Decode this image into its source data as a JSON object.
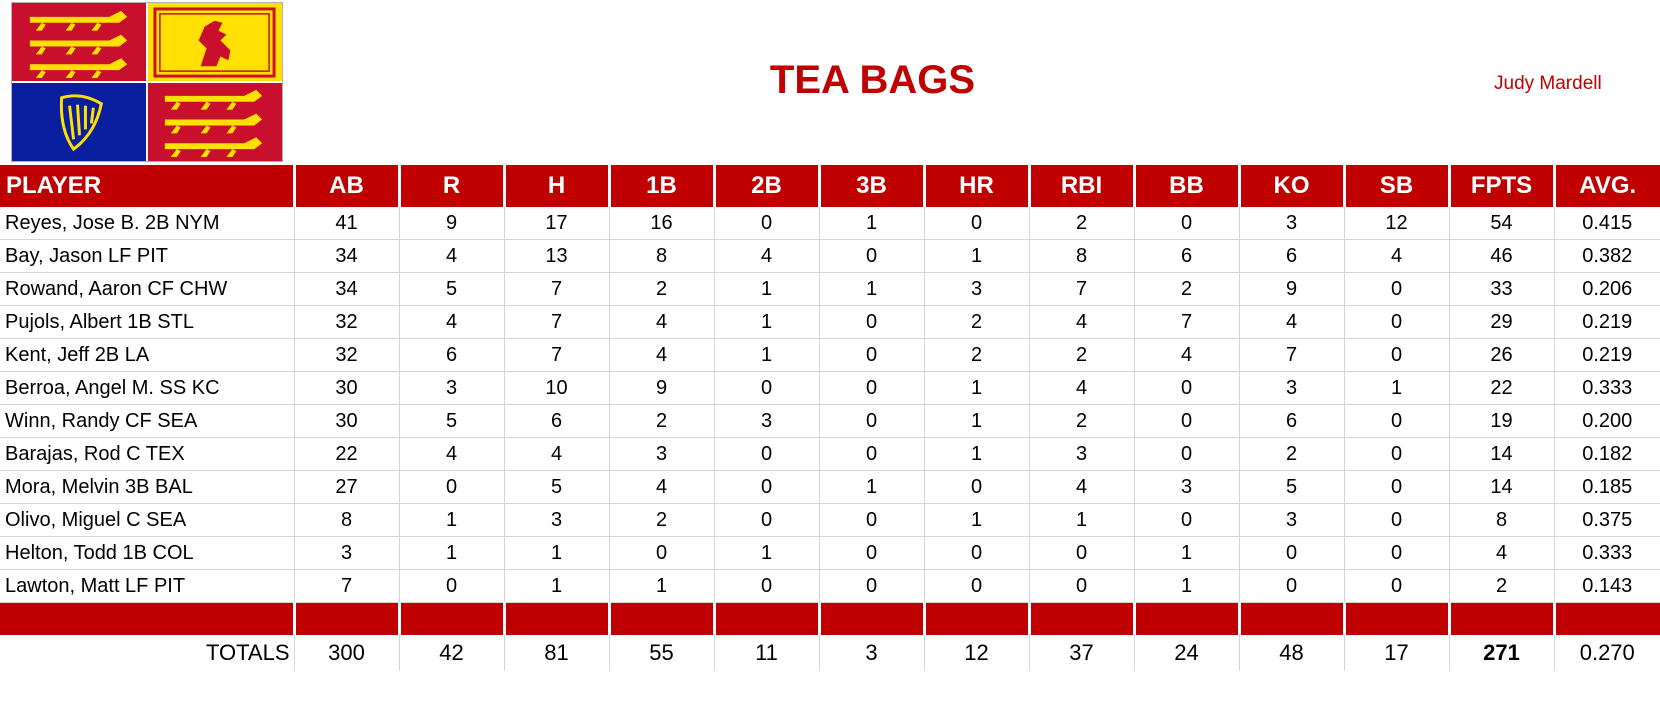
{
  "header": {
    "team_name": "TEA BAGS",
    "manager": "Judy Mardell"
  },
  "colors": {
    "accent_red": "#c00000",
    "flag_gold": "#ffe000",
    "flag_blue": "#0a1ea0"
  },
  "table": {
    "columns": [
      "PLAYER",
      "AB",
      "R",
      "H",
      "1B",
      "2B",
      "3B",
      "HR",
      "RBI",
      "BB",
      "KO",
      "SB",
      "FPTS",
      "AVG."
    ],
    "rows": [
      [
        "Reyes, Jose B. 2B NYM",
        "41",
        "9",
        "17",
        "16",
        "0",
        "1",
        "0",
        "2",
        "0",
        "3",
        "12",
        "54",
        "0.415"
      ],
      [
        "Bay, Jason LF PIT",
        "34",
        "4",
        "13",
        "8",
        "4",
        "0",
        "1",
        "8",
        "6",
        "6",
        "4",
        "46",
        "0.382"
      ],
      [
        "Rowand, Aaron CF CHW",
        "34",
        "5",
        "7",
        "2",
        "1",
        "1",
        "3",
        "7",
        "2",
        "9",
        "0",
        "33",
        "0.206"
      ],
      [
        "Pujols, Albert 1B STL",
        "32",
        "4",
        "7",
        "4",
        "1",
        "0",
        "2",
        "4",
        "7",
        "4",
        "0",
        "29",
        "0.219"
      ],
      [
        "Kent, Jeff 2B LA",
        "32",
        "6",
        "7",
        "4",
        "1",
        "0",
        "2",
        "2",
        "4",
        "7",
        "0",
        "26",
        "0.219"
      ],
      [
        "Berroa, Angel M. SS KC",
        "30",
        "3",
        "10",
        "9",
        "0",
        "0",
        "1",
        "4",
        "0",
        "3",
        "1",
        "22",
        "0.333"
      ],
      [
        "Winn, Randy CF SEA",
        "30",
        "5",
        "6",
        "2",
        "3",
        "0",
        "1",
        "2",
        "0",
        "6",
        "0",
        "19",
        "0.200"
      ],
      [
        "Barajas, Rod C TEX",
        "22",
        "4",
        "4",
        "3",
        "0",
        "0",
        "1",
        "3",
        "0",
        "2",
        "0",
        "14",
        "0.182"
      ],
      [
        "Mora, Melvin 3B BAL",
        "27",
        "0",
        "5",
        "4",
        "0",
        "1",
        "0",
        "4",
        "3",
        "5",
        "0",
        "14",
        "0.185"
      ],
      [
        "Olivo, Miguel C SEA",
        "8",
        "1",
        "3",
        "2",
        "0",
        "0",
        "1",
        "1",
        "0",
        "3",
        "0",
        "8",
        "0.375"
      ],
      [
        "Helton, Todd 1B COL",
        "3",
        "1",
        "1",
        "0",
        "1",
        "0",
        "0",
        "0",
        "1",
        "0",
        "0",
        "4",
        "0.333"
      ],
      [
        "Lawton, Matt LF PIT",
        "7",
        "0",
        "1",
        "1",
        "0",
        "0",
        "0",
        "0",
        "1",
        "0",
        "0",
        "2",
        "0.143"
      ]
    ],
    "totals": [
      "TOTALS",
      "300",
      "42",
      "81",
      "55",
      "11",
      "3",
      "12",
      "37",
      "24",
      "48",
      "17",
      "271",
      "0.270"
    ]
  }
}
